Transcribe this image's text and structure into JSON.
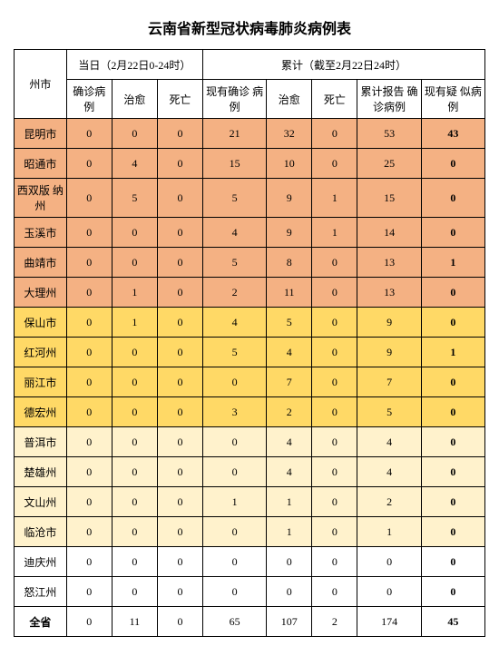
{
  "title": "云南省新型冠状病毒肺炎病例表",
  "header": {
    "region": "州市",
    "daily_label": "当日（2月22日0-24时）",
    "cumul_label": "累计（截至2月22日24时）",
    "cols": {
      "confirmed": "确诊病例",
      "cured": "治愈",
      "death": "死亡",
      "current_confirmed": "现有确诊\n病例",
      "cum_cured": "治愈",
      "cum_death": "死亡",
      "cum_report": "累计报告\n确诊病例",
      "current_suspect": "现有疑\n似病例"
    }
  },
  "colors": {
    "tier0": "#f4b183",
    "tier1": "#ffd966",
    "tier2": "#fff2cc",
    "tier3": "#ffffff",
    "border": "#000000"
  },
  "rows": [
    {
      "region": "昆明市",
      "d_conf": "0",
      "d_cure": "0",
      "d_death": "0",
      "cur_conf": "21",
      "c_cure": "32",
      "c_death": "0",
      "c_rep": "53",
      "suspect": "43",
      "tier": 0
    },
    {
      "region": "昭通市",
      "d_conf": "0",
      "d_cure": "4",
      "d_death": "0",
      "cur_conf": "15",
      "c_cure": "10",
      "c_death": "0",
      "c_rep": "25",
      "suspect": "0",
      "tier": 0
    },
    {
      "region": "西双版\n纳州",
      "d_conf": "0",
      "d_cure": "5",
      "d_death": "0",
      "cur_conf": "5",
      "c_cure": "9",
      "c_death": "1",
      "c_rep": "15",
      "suspect": "0",
      "tier": 0
    },
    {
      "region": "玉溪市",
      "d_conf": "0",
      "d_cure": "0",
      "d_death": "0",
      "cur_conf": "4",
      "c_cure": "9",
      "c_death": "1",
      "c_rep": "14",
      "suspect": "0",
      "tier": 0
    },
    {
      "region": "曲靖市",
      "d_conf": "0",
      "d_cure": "0",
      "d_death": "0",
      "cur_conf": "5",
      "c_cure": "8",
      "c_death": "0",
      "c_rep": "13",
      "suspect": "1",
      "tier": 0
    },
    {
      "region": "大理州",
      "d_conf": "0",
      "d_cure": "1",
      "d_death": "0",
      "cur_conf": "2",
      "c_cure": "11",
      "c_death": "0",
      "c_rep": "13",
      "suspect": "0",
      "tier": 0
    },
    {
      "region": "保山市",
      "d_conf": "0",
      "d_cure": "1",
      "d_death": "0",
      "cur_conf": "4",
      "c_cure": "5",
      "c_death": "0",
      "c_rep": "9",
      "suspect": "0",
      "tier": 1
    },
    {
      "region": "红河州",
      "d_conf": "0",
      "d_cure": "0",
      "d_death": "0",
      "cur_conf": "5",
      "c_cure": "4",
      "c_death": "0",
      "c_rep": "9",
      "suspect": "1",
      "tier": 1
    },
    {
      "region": "丽江市",
      "d_conf": "0",
      "d_cure": "0",
      "d_death": "0",
      "cur_conf": "0",
      "c_cure": "7",
      "c_death": "0",
      "c_rep": "7",
      "suspect": "0",
      "tier": 1
    },
    {
      "region": "德宏州",
      "d_conf": "0",
      "d_cure": "0",
      "d_death": "0",
      "cur_conf": "3",
      "c_cure": "2",
      "c_death": "0",
      "c_rep": "5",
      "suspect": "0",
      "tier": 1
    },
    {
      "region": "普洱市",
      "d_conf": "0",
      "d_cure": "0",
      "d_death": "0",
      "cur_conf": "0",
      "c_cure": "4",
      "c_death": "0",
      "c_rep": "4",
      "suspect": "0",
      "tier": 2
    },
    {
      "region": "楚雄州",
      "d_conf": "0",
      "d_cure": "0",
      "d_death": "0",
      "cur_conf": "0",
      "c_cure": "4",
      "c_death": "0",
      "c_rep": "4",
      "suspect": "0",
      "tier": 2
    },
    {
      "region": "文山州",
      "d_conf": "0",
      "d_cure": "0",
      "d_death": "0",
      "cur_conf": "1",
      "c_cure": "1",
      "c_death": "0",
      "c_rep": "2",
      "suspect": "0",
      "tier": 2
    },
    {
      "region": "临沧市",
      "d_conf": "0",
      "d_cure": "0",
      "d_death": "0",
      "cur_conf": "0",
      "c_cure": "1",
      "c_death": "0",
      "c_rep": "1",
      "suspect": "0",
      "tier": 2
    },
    {
      "region": "迪庆州",
      "d_conf": "0",
      "d_cure": "0",
      "d_death": "0",
      "cur_conf": "0",
      "c_cure": "0",
      "c_death": "0",
      "c_rep": "0",
      "suspect": "0",
      "tier": 3
    },
    {
      "region": "怒江州",
      "d_conf": "0",
      "d_cure": "0",
      "d_death": "0",
      "cur_conf": "0",
      "c_cure": "0",
      "c_death": "0",
      "c_rep": "0",
      "suspect": "0",
      "tier": 3
    }
  ],
  "total": {
    "region": "全省",
    "d_conf": "0",
    "d_cure": "11",
    "d_death": "0",
    "cur_conf": "65",
    "c_cure": "107",
    "c_death": "2",
    "c_rep": "174",
    "suspect": "45"
  }
}
